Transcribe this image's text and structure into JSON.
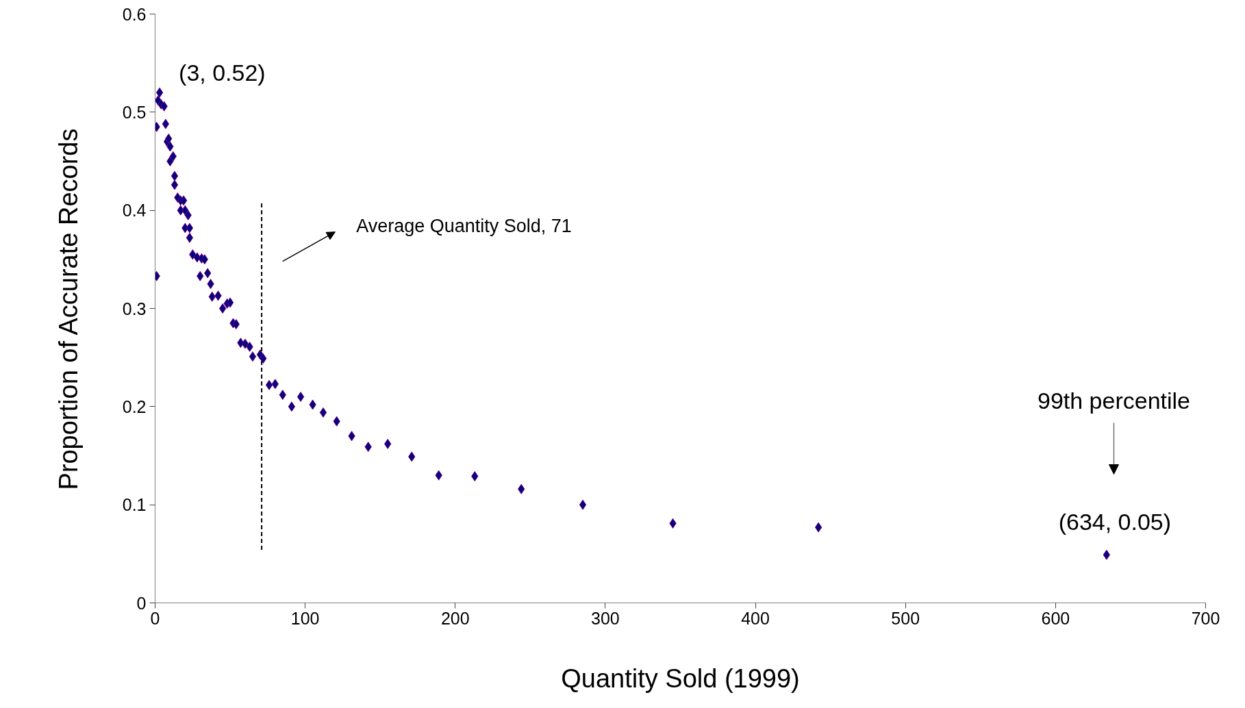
{
  "chart_data": {
    "type": "scatter",
    "xlabel": "Quantity Sold (1999)",
    "ylabel": "Proportion of Accurate Records",
    "x": [
      1,
      1,
      3,
      2,
      4,
      6,
      7,
      8,
      9,
      10,
      10,
      12,
      13,
      13,
      15,
      17,
      19,
      17,
      20,
      22,
      20,
      23,
      23,
      25,
      28,
      31,
      33,
      30,
      35,
      37,
      38,
      42,
      45,
      48,
      50,
      52,
      54,
      57,
      60,
      63,
      65,
      70,
      72,
      76,
      80,
      85,
      91,
      97,
      105,
      112,
      121,
      131,
      142,
      155,
      171,
      189,
      213,
      244,
      285,
      345,
      442,
      634
    ],
    "series": [
      {
        "color": "#000080",
        "values": [
          0.485,
          0.333,
          0.52,
          0.512,
          0.508,
          0.506,
          0.488,
          0.47,
          0.473,
          0.465,
          0.45,
          0.455,
          0.435,
          0.426,
          0.413,
          0.41,
          0.41,
          0.4,
          0.4,
          0.395,
          0.382,
          0.382,
          0.372,
          0.355,
          0.352,
          0.351,
          0.35,
          0.333,
          0.336,
          0.325,
          0.312,
          0.313,
          0.3,
          0.305,
          0.306,
          0.285,
          0.284,
          0.265,
          0.264,
          0.261,
          0.251,
          0.253,
          0.249,
          0.222,
          0.223,
          0.212,
          0.2,
          0.21,
          0.202,
          0.194,
          0.185,
          0.17,
          0.159,
          0.162,
          0.149,
          0.13,
          0.129,
          0.116,
          0.1,
          0.081,
          0.077,
          0.049
        ]
      }
    ],
    "xlim": [
      0,
      700
    ],
    "xticks": [
      0,
      100,
      200,
      300,
      400,
      500,
      600,
      700
    ],
    "ylim": [
      0,
      0.6
    ],
    "yticks": [
      0,
      0.1,
      0.2,
      0.3,
      0.4,
      0.5,
      0.6
    ],
    "marker": "diamond",
    "grid": false,
    "ref_lines": [
      {
        "axis": "x",
        "value": 71,
        "label": "Average Quantity Sold, 71",
        "line_style": "dashed",
        "color": "#000000"
      }
    ],
    "annotations": [
      {
        "text": "(3, 0.52)",
        "x": 3,
        "y": 0.52
      },
      "99th percentile",
      {
        "text": "(634, 0.05)",
        "x": 634,
        "y": 0.05
      }
    ]
  }
}
